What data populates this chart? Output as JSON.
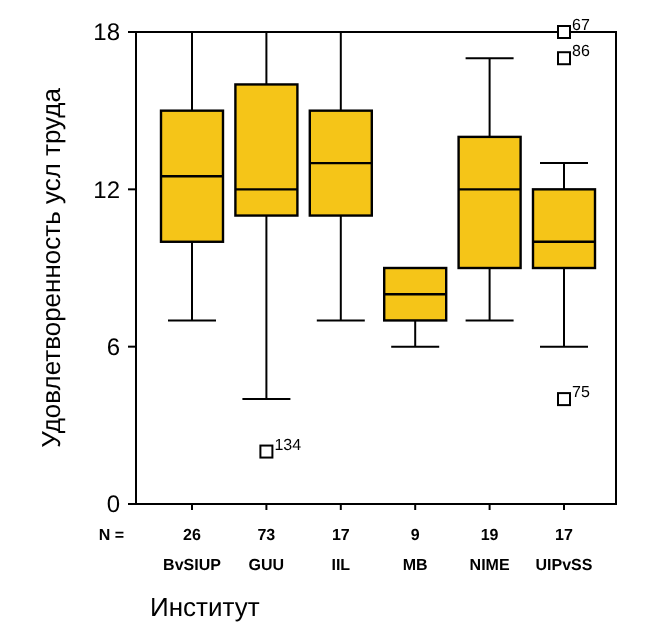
{
  "chart_data": {
    "type": "box",
    "xlabel": "Институт",
    "ylabel": "Удовлетворенность усл труда",
    "categories": [
      "BvSIUP",
      "GUU",
      "IIL",
      "MB",
      "NIME",
      "UIPvSS"
    ],
    "color": "#f5c518",
    "boxes": [
      {
        "low": 7,
        "q1": 10,
        "median": 12.5,
        "q3": 15,
        "high": 18
      },
      {
        "low": 4,
        "q1": 11,
        "median": 12,
        "q3": 16,
        "high": 18,
        "outliers": [
          2
        ]
      },
      {
        "low": 7,
        "q1": 11,
        "median": 13,
        "q3": 15,
        "high": 18
      },
      {
        "low": 6,
        "q1": 7,
        "median": 8,
        "q3": 9,
        "high": 9
      },
      {
        "low": 7,
        "q1": 9,
        "median": 12,
        "q3": 14,
        "high": 17
      },
      {
        "low": 6,
        "q1": 9,
        "median": 10,
        "q3": 12,
        "high": 13,
        "outliers": [
          18,
          17,
          4
        ]
      }
    ],
    "ylim": [
      0,
      18
    ],
    "yticks": [
      0,
      6,
      12,
      18
    ],
    "annotations": [
      "N =",
      {
        "text": "26",
        "x": "BvSIUP"
      },
      {
        "text": "73",
        "x": "GUU"
      },
      {
        "text": "17",
        "x": "IIL"
      },
      {
        "text": "9",
        "x": "MB"
      },
      {
        "text": "19",
        "x": "NIME"
      },
      {
        "text": "17",
        "x": "UIPvSS"
      },
      "134",
      "67",
      "86",
      "75"
    ]
  }
}
